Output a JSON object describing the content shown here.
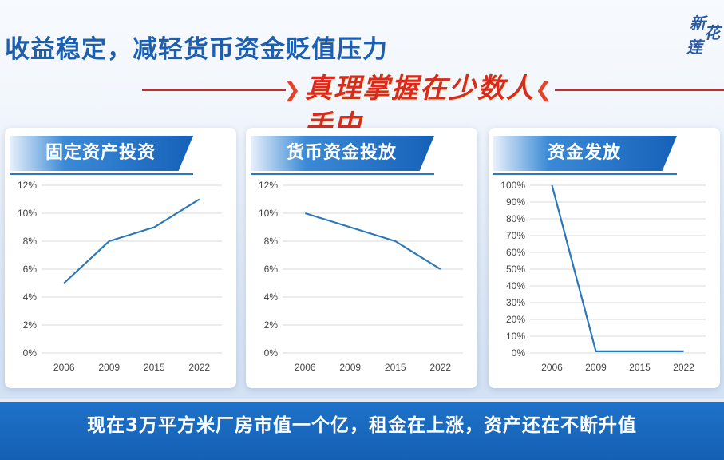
{
  "header": {
    "title": "收益稳定，减轻货币资金贬值压力",
    "subtitle": "真理掌握在少数人手中",
    "logo_text": [
      "新",
      "花",
      "莲"
    ]
  },
  "footer": {
    "text": "现在3万平方米厂房市值一个亿，租金在上涨，资产还在不断升值"
  },
  "colors": {
    "title_blue": "#1d5fae",
    "subtitle_red": "#d82a1f",
    "line_blue": "#2a78b8",
    "band_blue": "#1460b4"
  },
  "chart_data": [
    {
      "type": "line",
      "title": "固定资产投资",
      "categories": [
        "2006",
        "2009",
        "2015",
        "2022"
      ],
      "values": [
        5,
        8,
        9,
        11
      ],
      "ylim": [
        0,
        12
      ],
      "yticks": [
        "0%",
        "2%",
        "4%",
        "6%",
        "8%",
        "10%",
        "12%"
      ],
      "ytick_values": [
        0,
        2,
        4,
        6,
        8,
        10,
        12
      ],
      "grid": true
    },
    {
      "type": "line",
      "title": "货币资金投放",
      "categories": [
        "2006",
        "2009",
        "2015",
        "2022"
      ],
      "values": [
        10,
        9,
        8,
        6
      ],
      "ylim": [
        0,
        12
      ],
      "yticks": [
        "0%",
        "2%",
        "4%",
        "6%",
        "8%",
        "10%",
        "12%"
      ],
      "ytick_values": [
        0,
        2,
        4,
        6,
        8,
        10,
        12
      ],
      "grid": true
    },
    {
      "type": "line",
      "title": "资金发放",
      "categories": [
        "2006",
        "2009",
        "2015",
        "2022"
      ],
      "values": [
        100,
        1,
        1,
        1
      ],
      "ylim": [
        0,
        100
      ],
      "yticks": [
        "0%",
        "10%",
        "20%",
        "30%",
        "40%",
        "50%",
        "60%",
        "70%",
        "80%",
        "90%",
        "100%"
      ],
      "ytick_values": [
        0,
        10,
        20,
        30,
        40,
        50,
        60,
        70,
        80,
        90,
        100
      ],
      "grid": true
    }
  ]
}
